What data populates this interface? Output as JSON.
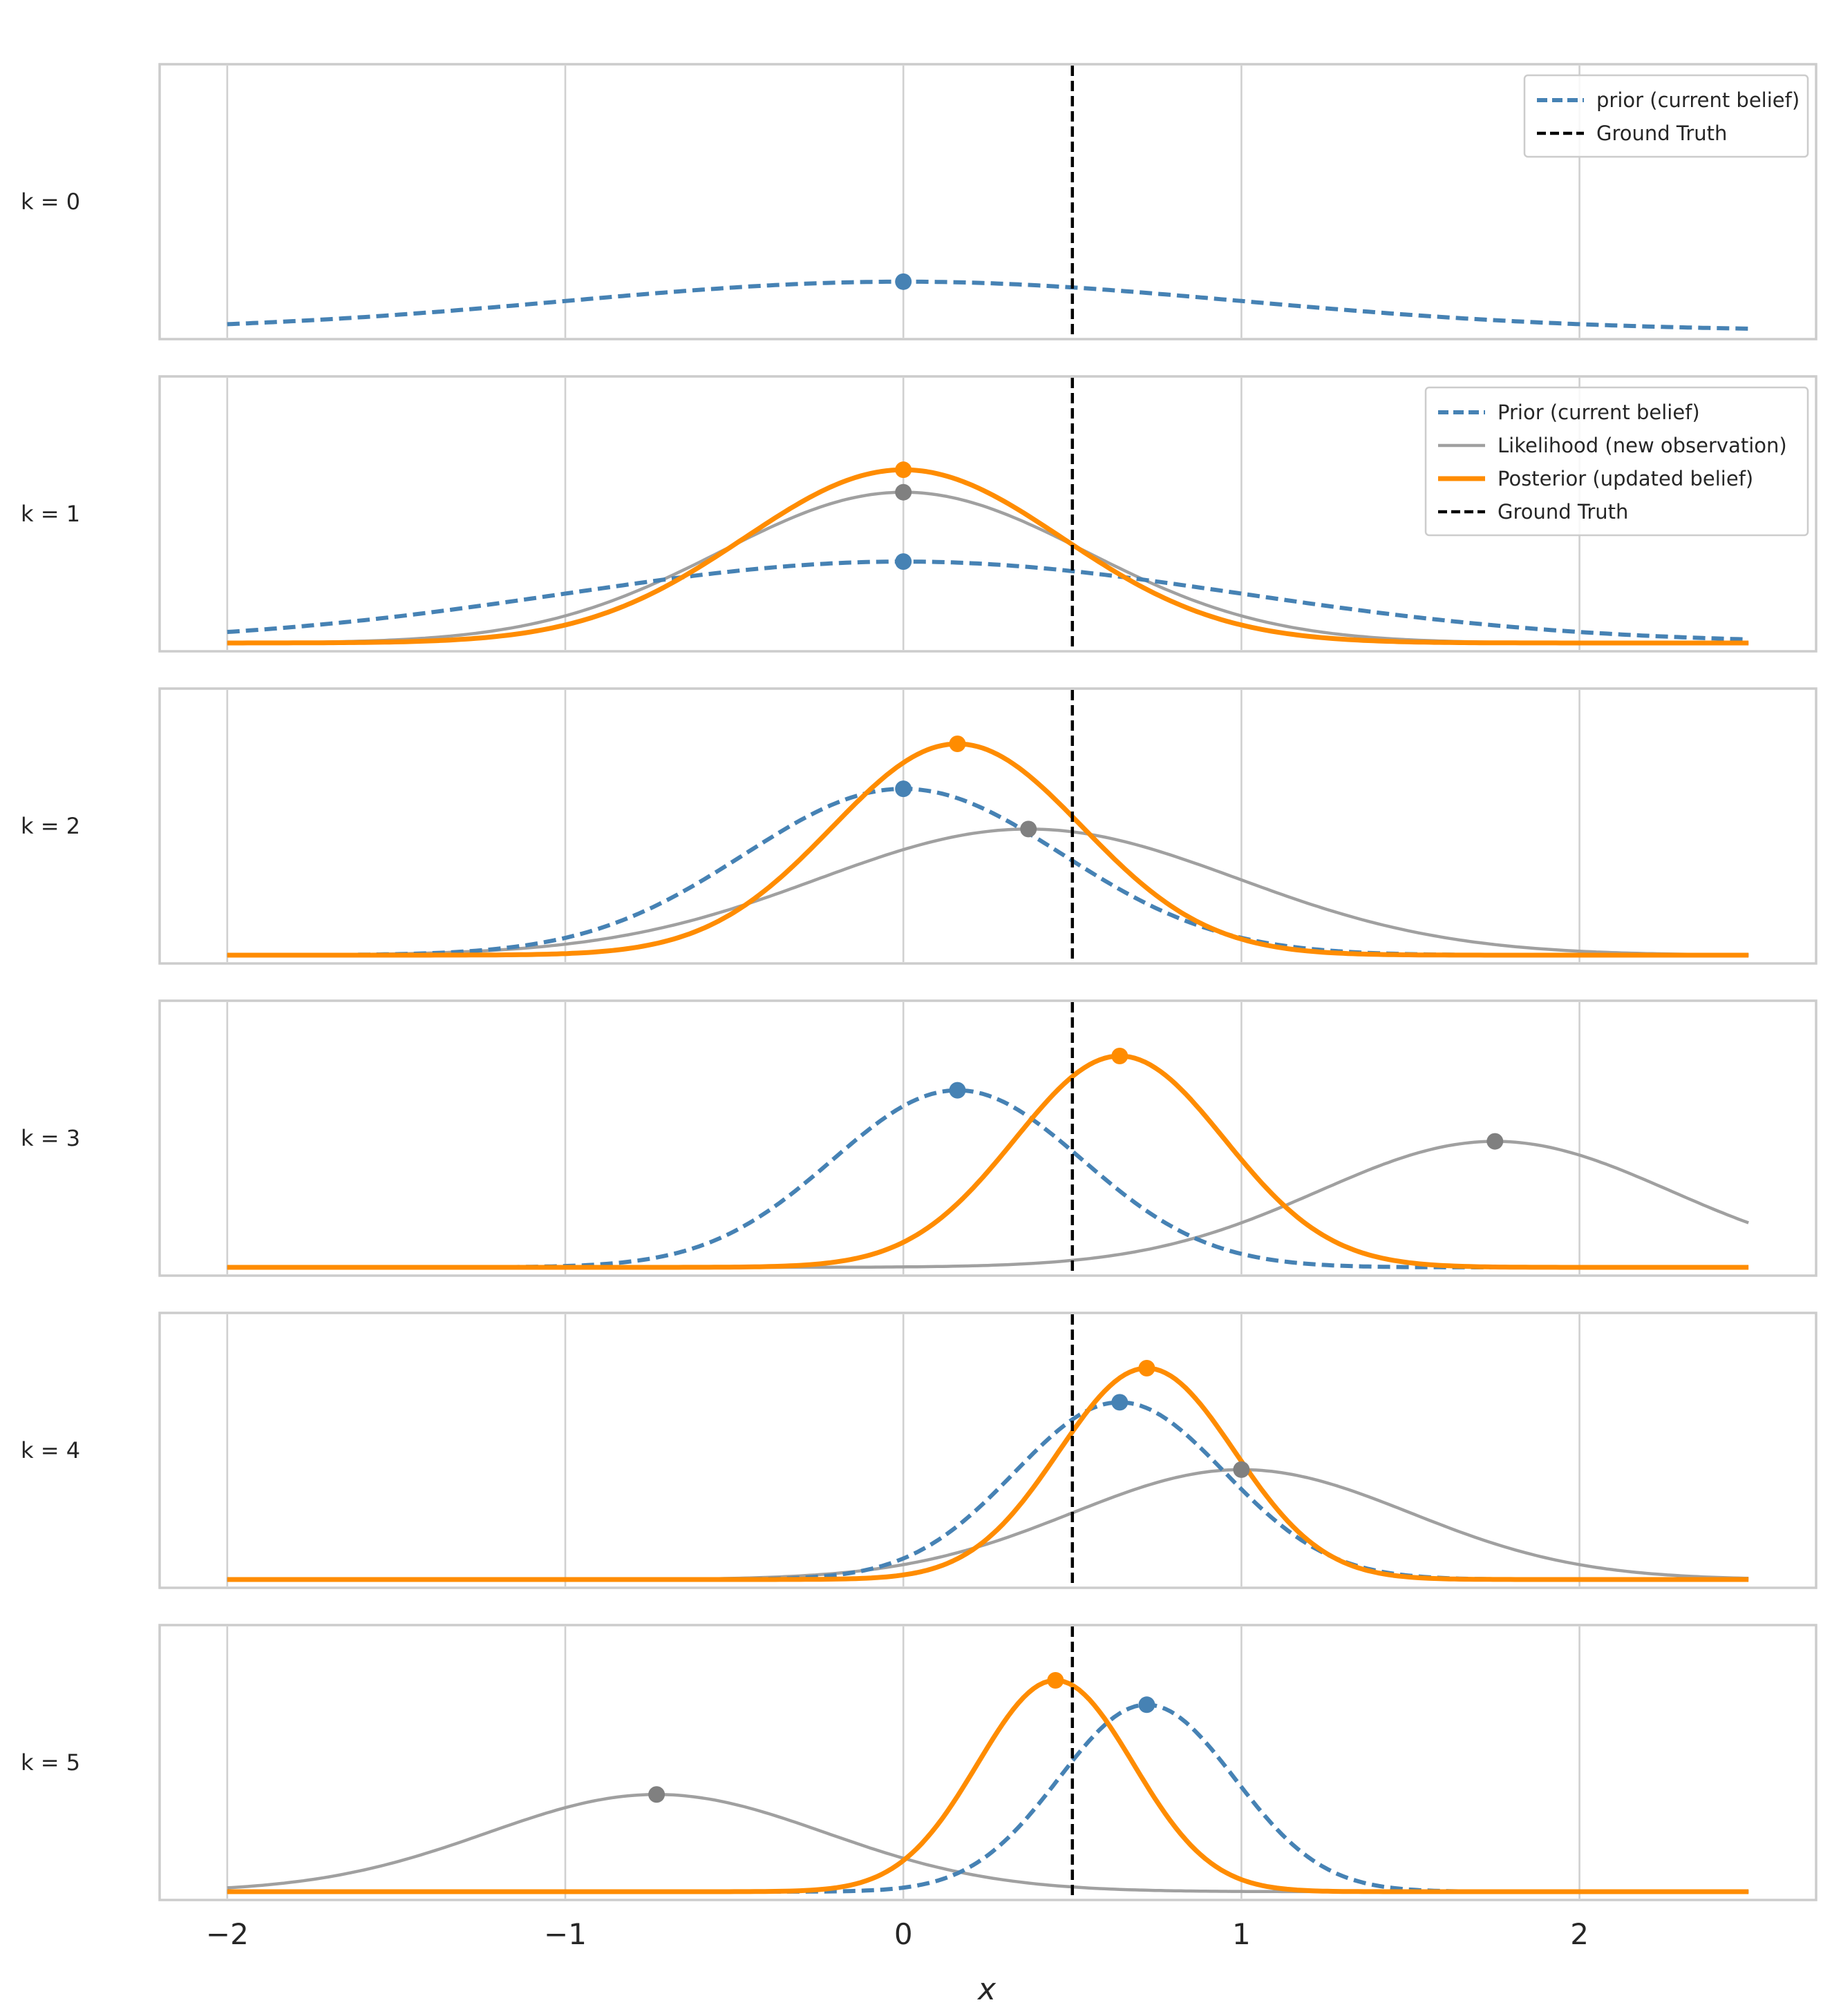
{
  "chart_data": {
    "type": "line",
    "title": "",
    "xlabel": "x",
    "ylabel": "",
    "xlim": [
      -2.2,
      2.7
    ],
    "x_range": [
      -2,
      2.5
    ],
    "xticks": [
      -2,
      -1,
      0,
      1,
      2
    ],
    "xtick_labels": [
      "−2",
      "−1",
      "0",
      "1",
      "2"
    ],
    "grid": true,
    "ground_truth": 0.5,
    "legend_placement": "top-right",
    "colors": {
      "prior": "#4682b4",
      "likelihood": "#a0a0a0",
      "likelihood_marker": "#808080",
      "posterior": "#ff8c00",
      "ground_truth": "#000000"
    },
    "panels": [
      {
        "label": "k = 0",
        "legend": [
          {
            "key": "prior",
            "text": "prior  (current belief)"
          },
          {
            "key": "gt",
            "text": "Ground Truth"
          }
        ],
        "prior": {
          "mean": 0.0,
          "std": 1.0
        },
        "likelihood": null,
        "posterior": null
      },
      {
        "label": "k = 1",
        "legend": [
          {
            "key": "prior",
            "text": "Prior  (current belief)"
          },
          {
            "key": "likelihood",
            "text": "Likelihood  (new observation)"
          },
          {
            "key": "posterior",
            "text": "Posterior  (updated belief)"
          },
          {
            "key": "gt",
            "text": "Ground Truth"
          }
        ],
        "prior": {
          "mean": 0.0,
          "std": 1.0
        },
        "likelihood": {
          "mean": 0.0,
          "std": 0.54
        },
        "posterior": {
          "mean": 0.0,
          "std": 0.47
        }
      },
      {
        "label": "k = 2",
        "legend": [],
        "prior": {
          "mean": 0.0,
          "std": 0.47
        },
        "likelihood": {
          "mean": 0.37,
          "std": 0.62
        },
        "posterior": {
          "mean": 0.16,
          "std": 0.37
        }
      },
      {
        "label": "k = 3",
        "legend": [],
        "prior": {
          "mean": 0.16,
          "std": 0.37
        },
        "likelihood": {
          "mean": 1.75,
          "std": 0.52
        },
        "posterior": {
          "mean": 0.64,
          "std": 0.31
        }
      },
      {
        "label": "k = 4",
        "legend": [],
        "prior": {
          "mean": 0.64,
          "std": 0.31
        },
        "likelihood": {
          "mean": 1.0,
          "std": 0.5
        },
        "posterior": {
          "mean": 0.72,
          "std": 0.26
        }
      },
      {
        "label": "k = 5",
        "legend": [],
        "prior": {
          "mean": 0.72,
          "std": 0.26
        },
        "likelihood": {
          "mean": -0.73,
          "std": 0.5
        },
        "posterior": {
          "mean": 0.45,
          "std": 0.23
        }
      }
    ]
  }
}
